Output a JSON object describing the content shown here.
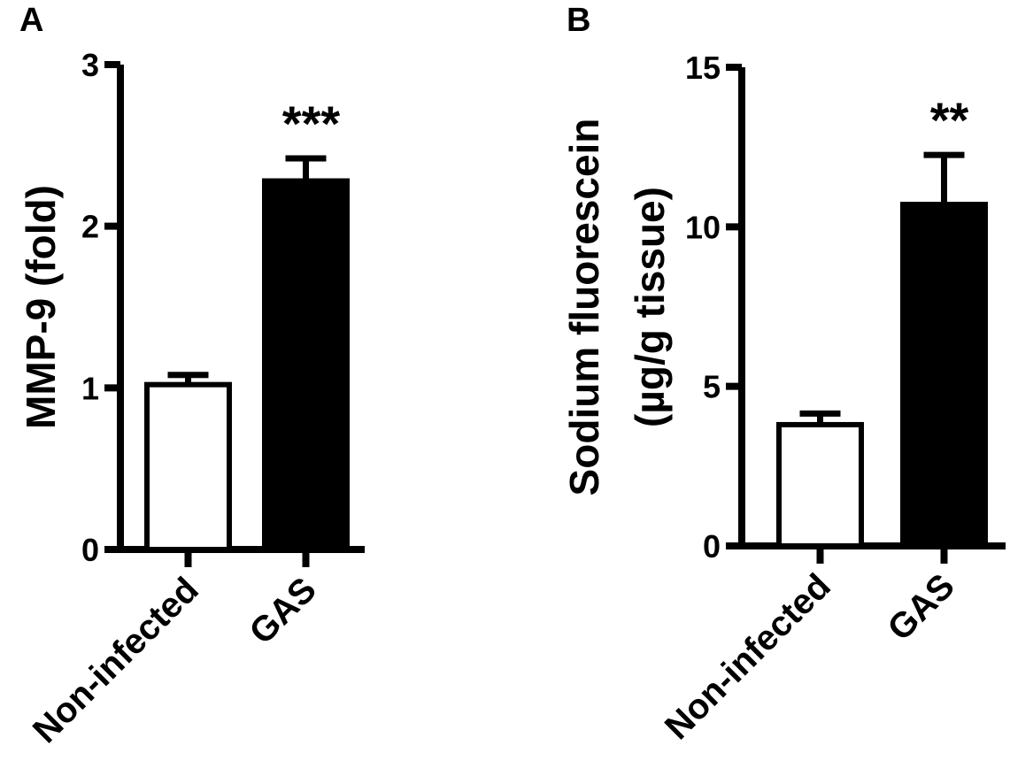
{
  "panels": [
    {
      "letter": "A"
    },
    {
      "letter": "B"
    }
  ],
  "chart_data": [
    {
      "type": "bar",
      "title": "",
      "categories": [
        "Non-infected",
        "GAS"
      ],
      "values": [
        1.02,
        2.28
      ],
      "errors": [
        0.06,
        0.14
      ],
      "bar_colors": [
        "#ffffff",
        "#000000"
      ],
      "significance": [
        "",
        "***"
      ],
      "xlabel": "",
      "ylabel": "MMP-9 (fold)",
      "ylim": [
        0,
        3
      ],
      "yticks": [
        "0",
        "1",
        "2",
        "3"
      ],
      "grid": false
    },
    {
      "type": "bar",
      "title": "",
      "categories": [
        "Non-infected",
        "GAS"
      ],
      "values": [
        3.8,
        10.7
      ],
      "errors": [
        0.35,
        1.55
      ],
      "bar_colors": [
        "#ffffff",
        "#000000"
      ],
      "significance": [
        "",
        "**"
      ],
      "xlabel": "",
      "ylabel": "Sodium fluorescein",
      "ylabel2": "(µg/g tissue)",
      "ylim": [
        0,
        15
      ],
      "yticks": [
        "0",
        "5",
        "10",
        "15"
      ],
      "grid": false
    }
  ]
}
